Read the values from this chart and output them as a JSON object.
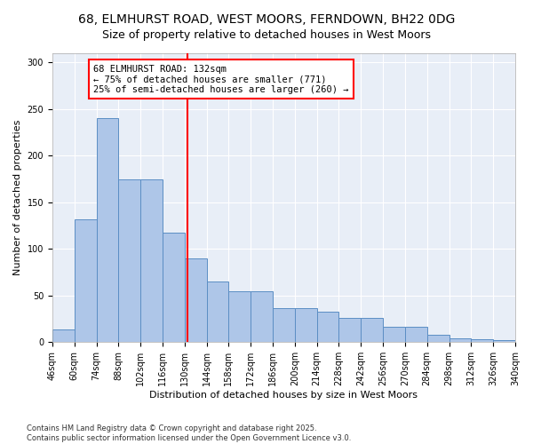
{
  "title_line1": "68, ELMHURST ROAD, WEST MOORS, FERNDOWN, BH22 0DG",
  "title_line2": "Size of property relative to detached houses in West Moors",
  "xlabel": "Distribution of detached houses by size in West Moors",
  "ylabel": "Number of detached properties",
  "bar_color": "#aec6e8",
  "bar_edge_color": "#5b8ec4",
  "bg_color": "#e8eef7",
  "vline_x": 132,
  "vline_color": "red",
  "annotation_text": "68 ELMHURST ROAD: 132sqm\n← 75% of detached houses are smaller (771)\n25% of semi-detached houses are larger (260) →",
  "annotation_box_color": "white",
  "annotation_box_edge": "red",
  "bins": [
    46,
    60,
    74,
    88,
    102,
    116,
    130,
    144,
    158,
    172,
    186,
    200,
    214,
    228,
    242,
    256,
    270,
    284,
    298,
    312,
    326
  ],
  "bar_heights": [
    14,
    132,
    240,
    175,
    175,
    118,
    90,
    65,
    55,
    55,
    37,
    37,
    33,
    26,
    26,
    17,
    17,
    8,
    4,
    3,
    2
  ],
  "ylim": [
    0,
    310
  ],
  "yticks": [
    0,
    50,
    100,
    150,
    200,
    250,
    300
  ],
  "footer": "Contains HM Land Registry data © Crown copyright and database right 2025.\nContains public sector information licensed under the Open Government Licence v3.0.",
  "title_fontsize": 10,
  "subtitle_fontsize": 9,
  "axis_label_fontsize": 8,
  "tick_fontsize": 7,
  "annotation_fontsize": 7.5,
  "footer_fontsize": 6
}
